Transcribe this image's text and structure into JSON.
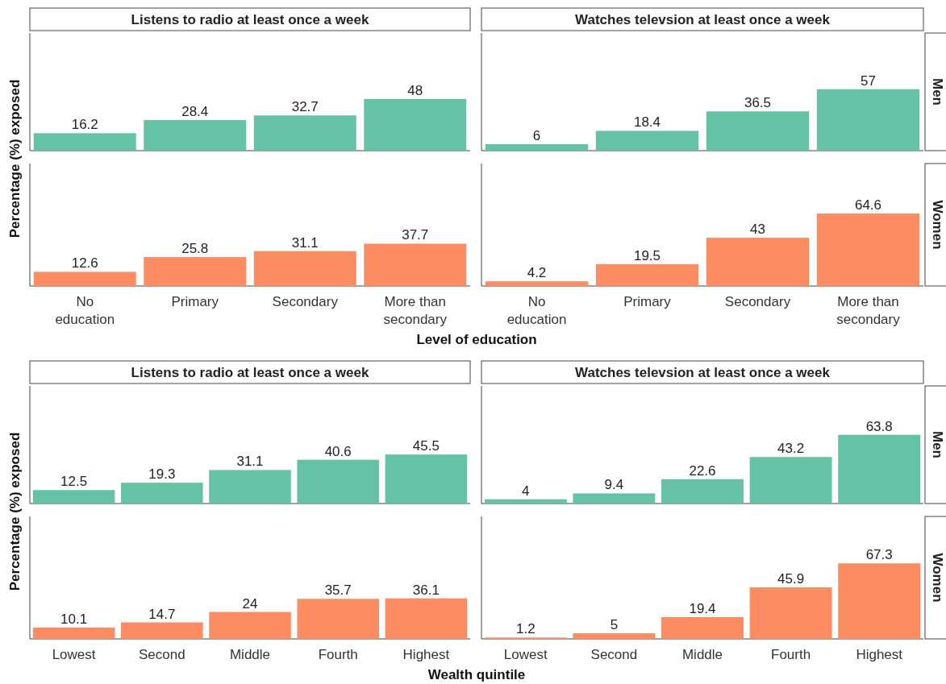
{
  "chart_data": [
    {
      "type": "bar",
      "title": "Listens to radio at least once a week",
      "ylabel": "Percentage (%) exposed",
      "categories": [
        null,
        null,
        null,
        null
      ],
      "values": [
        16.2,
        28.4,
        32.7,
        48
      ],
      "color": "#66c2a5",
      "data_labels": true
    },
    {
      "type": "bar",
      "title": "Watches televsion at least once a week",
      "subtitle": "Men",
      "categories": [
        null,
        null,
        null,
        null
      ],
      "values": [
        6,
        18.4,
        36.5,
        57
      ],
      "color": "#66c2a5",
      "data_labels": true
    },
    {
      "type": "bar",
      "xlabel": "Level of education",
      "categories": [
        "No education",
        "Primary",
        "Secondary",
        "More than secondary"
      ],
      "values": [
        12.6,
        25.8,
        31.1,
        37.7
      ],
      "color": "#fc8d62",
      "data_labels": true,
      "tick_labels": "x"
    },
    {
      "type": "bar",
      "subtitle": "Women",
      "categories": [
        "No education",
        "Primary",
        "Secondary",
        "More than secondary"
      ],
      "values": [
        4.2,
        19.5,
        43,
        64.6
      ],
      "color": "#fc8d62",
      "data_labels": true,
      "tick_labels": "x"
    },
    {
      "type": "bar",
      "title": "Listens to radio at least once a week",
      "ylabel": "Percentage (%) exposed",
      "categories": [
        null,
        null,
        null,
        null,
        null
      ],
      "values": [
        12.5,
        19.3,
        31.1,
        40.6,
        45.5
      ],
      "color": "#66c2a5",
      "data_labels": true
    },
    {
      "type": "bar",
      "title": "Watches televsion at least once a week",
      "subtitle": "Men",
      "categories": [
        null,
        null,
        null,
        null,
        null
      ],
      "values": [
        4,
        9.4,
        22.6,
        43.2,
        63.8
      ],
      "color": "#66c2a5",
      "data_labels": true
    },
    {
      "type": "bar",
      "xlabel": "Wealth quintile",
      "categories": [
        "Lowest",
        "Second",
        "Middle",
        "Fourth",
        "Highest"
      ],
      "values": [
        10.1,
        14.7,
        24,
        35.7,
        36.1
      ],
      "color": "#fc8d62",
      "data_labels": true,
      "tick_labels": "x"
    },
    {
      "type": "bar",
      "subtitle": "Women",
      "categories": [
        "Lowest",
        "Second",
        "Middle",
        "Fourth",
        "Highest"
      ],
      "values": [
        1.2,
        5,
        19.4,
        45.9,
        67.3
      ],
      "color": "#fc8d62",
      "data_labels": true,
      "tick_labels": "x"
    }
  ]
}
